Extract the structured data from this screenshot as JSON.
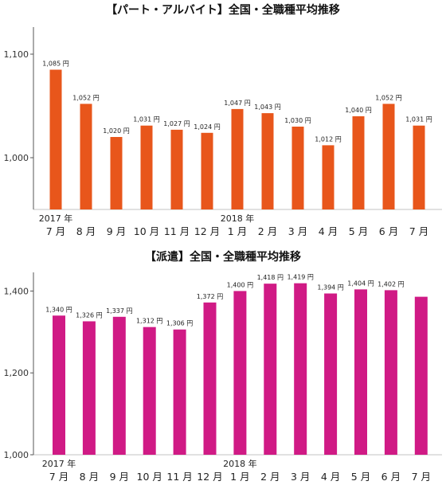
{
  "chart_data": [
    {
      "type": "bar",
      "title": "【パート・アルバイト】全国・全職種平均推移",
      "color": "#E8561B",
      "ylim": [
        950,
        1120
      ],
      "yticks": [
        "1,000",
        "1,100"
      ],
      "ytick_values": [
        1000,
        1100
      ],
      "categories": [
        "7 月",
        "8 月",
        "9 月",
        "10 月",
        "11 月",
        "12 月",
        "1 月",
        "2 月",
        "3 月",
        "4 月",
        "5 月",
        "6 月",
        "7 月"
      ],
      "year_markers": [
        {
          "index": 0,
          "label": "2017 年"
        },
        {
          "index": 6,
          "label": "2018 年"
        }
      ],
      "values": [
        1085,
        1052,
        1020,
        1031,
        1027,
        1024,
        1047,
        1043,
        1030,
        1012,
        1040,
        1052,
        1031
      ],
      "value_labels": [
        "1,085 円",
        "1,052 円",
        "1,020 円",
        "1,031 円",
        "1,027 円",
        "1,024 円",
        "1,047 円",
        "1,043 円",
        "1,030 円",
        "1,012 円",
        "1,040 円",
        "1,052 円",
        "1,031 円"
      ]
    },
    {
      "type": "bar",
      "title": "【派遣】全国・全職種平均推移",
      "color": "#D01A85",
      "ylim": [
        1000,
        1430
      ],
      "yticks": [
        "1,000",
        "1,200",
        "1,400"
      ],
      "ytick_values": [
        1000,
        1200,
        1400
      ],
      "categories": [
        "7 月",
        "8 月",
        "9 月",
        "10 月",
        "11 月",
        "12 月",
        "1 月",
        "2 月",
        "3 月",
        "4 月",
        "5 月",
        "6 月",
        "7 月"
      ],
      "year_markers": [
        {
          "index": 0,
          "label": "2017 年"
        },
        {
          "index": 6,
          "label": "2018 年"
        }
      ],
      "values": [
        1340,
        1326,
        1337,
        1312,
        1306,
        1372,
        1400,
        1418,
        1419,
        1394,
        1404,
        1402,
        1386
      ],
      "value_labels": [
        "1,340 円",
        "1,326 円",
        "1,337 円",
        "1,312 円",
        "1,306 円",
        "1,372 円",
        "1,400 円",
        "1,418 円",
        "1,419 円",
        "1,394 円",
        "1,404 円",
        "1,402 円",
        ""
      ]
    }
  ]
}
